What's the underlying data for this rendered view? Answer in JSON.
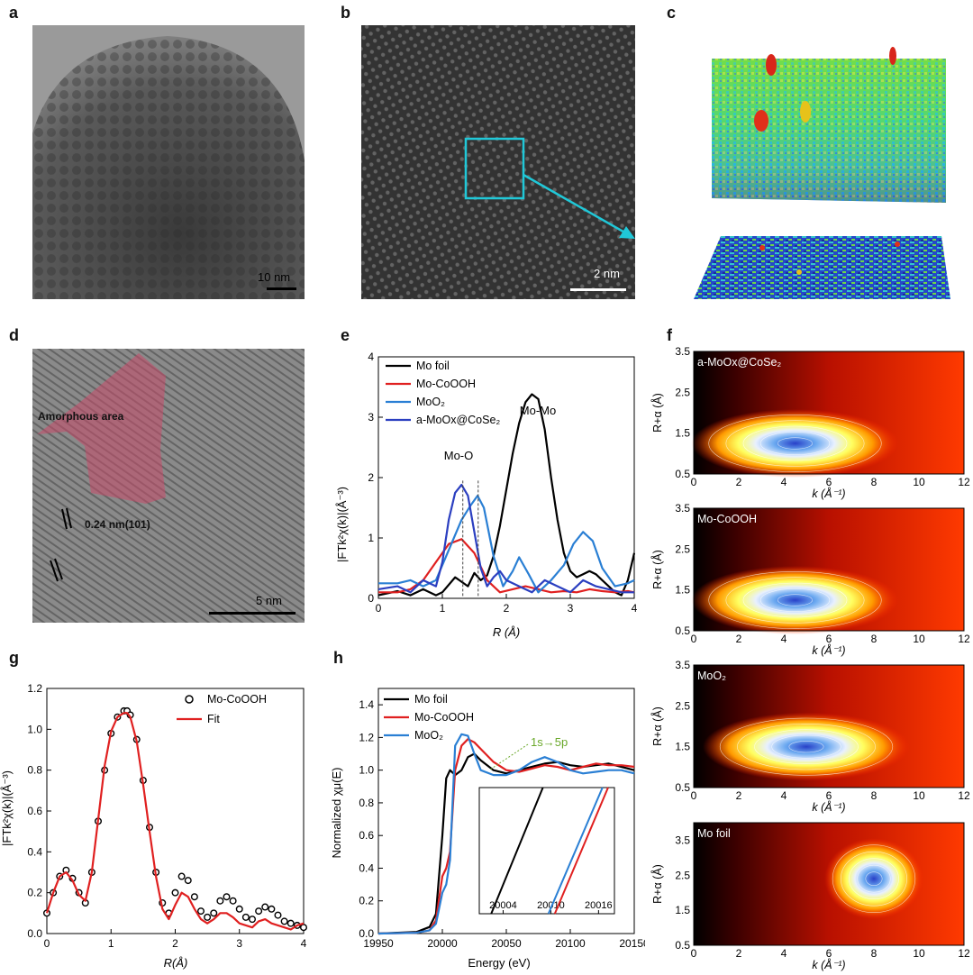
{
  "panel_labels": [
    "a",
    "b",
    "c",
    "d",
    "e",
    "f",
    "g",
    "h"
  ],
  "micrographs": {
    "a": {
      "scale": "10 nm"
    },
    "b": {
      "scale": "2 nm"
    },
    "d": {
      "scale": "5 nm",
      "amorphous": "Amorphous area",
      "lattice": "0.24 nm(101)"
    }
  },
  "chart_data": [
    {
      "id": "e",
      "type": "line",
      "xlabel": "R (Å)",
      "ylabel": "|FTk²χ(k)|(Å⁻³)",
      "xlim": [
        0,
        4
      ],
      "ylim": [
        0,
        4
      ],
      "xticks": [
        "0",
        "1",
        "2",
        "3",
        "4"
      ],
      "yticks": [
        "0",
        "1",
        "2",
        "3",
        "4"
      ],
      "legend": "top-left",
      "annotations": [
        "Mo-Mo",
        "Mo-O"
      ],
      "series": [
        {
          "name": "Mo foil",
          "color": "#000000",
          "x": [
            0,
            0.3,
            0.5,
            0.7,
            0.9,
            1.0,
            1.2,
            1.4,
            1.5,
            1.6,
            1.7,
            1.8,
            1.9,
            2.0,
            2.1,
            2.2,
            2.3,
            2.4,
            2.5,
            2.6,
            2.7,
            2.8,
            2.9,
            3.0,
            3.1,
            3.2,
            3.3,
            3.4,
            3.5,
            3.6,
            3.7,
            3.8,
            3.9,
            4.0
          ],
          "y": [
            0.05,
            0.12,
            0.05,
            0.15,
            0.05,
            0.1,
            0.35,
            0.2,
            0.42,
            0.3,
            0.38,
            0.7,
            1.2,
            1.8,
            2.4,
            2.9,
            3.25,
            3.38,
            3.3,
            2.8,
            2.0,
            1.3,
            0.75,
            0.45,
            0.35,
            0.4,
            0.45,
            0.4,
            0.3,
            0.2,
            0.1,
            0.05,
            0.3,
            0.75
          ]
        },
        {
          "name": "Mo-CoOOH",
          "color": "#e02020",
          "x": [
            0,
            0.3,
            0.5,
            0.7,
            0.9,
            1.1,
            1.3,
            1.5,
            1.7,
            1.9,
            2.1,
            2.3,
            2.5,
            2.7,
            2.9,
            3.1,
            3.3,
            3.5,
            3.7,
            3.9,
            4.0
          ],
          "y": [
            0.1,
            0.1,
            0.15,
            0.3,
            0.6,
            0.9,
            0.98,
            0.75,
            0.3,
            0.1,
            0.15,
            0.2,
            0.15,
            0.1,
            0.12,
            0.1,
            0.15,
            0.12,
            0.1,
            0.12,
            0.1
          ]
        },
        {
          "name": "MoO₂",
          "color": "#2a7fd4",
          "x": [
            0,
            0.3,
            0.5,
            0.7,
            0.9,
            1.1,
            1.3,
            1.45,
            1.55,
            1.65,
            1.8,
            1.95,
            2.1,
            2.2,
            2.35,
            2.5,
            2.7,
            2.9,
            3.05,
            3.2,
            3.35,
            3.5,
            3.7,
            3.9,
            4.0
          ],
          "y": [
            0.25,
            0.25,
            0.3,
            0.2,
            0.3,
            0.8,
            1.3,
            1.55,
            1.7,
            1.5,
            0.7,
            0.2,
            0.45,
            0.68,
            0.4,
            0.1,
            0.3,
            0.55,
            0.9,
            1.1,
            0.95,
            0.5,
            0.2,
            0.25,
            0.3
          ]
        },
        {
          "name": "a-MoOx@CoSe₂",
          "color": "#2b3fc0",
          "x": [
            0,
            0.3,
            0.5,
            0.7,
            0.9,
            1.0,
            1.1,
            1.2,
            1.3,
            1.4,
            1.5,
            1.6,
            1.7,
            1.8,
            1.9,
            2.0,
            2.2,
            2.4,
            2.6,
            2.8,
            3.0,
            3.2,
            3.4,
            3.6,
            3.8,
            4.0
          ],
          "y": [
            0.15,
            0.2,
            0.1,
            0.3,
            0.2,
            0.6,
            1.3,
            1.75,
            1.88,
            1.7,
            1.1,
            0.5,
            0.2,
            0.35,
            0.45,
            0.3,
            0.2,
            0.1,
            0.3,
            0.2,
            0.1,
            0.3,
            0.2,
            0.15,
            0.1,
            0.1
          ]
        }
      ]
    },
    {
      "id": "g",
      "type": "line",
      "xlabel": "R(Å)",
      "ylabel": "|FTk²χ(k)|(Å⁻³)",
      "xlim": [
        0,
        4
      ],
      "ylim": [
        0,
        1.2
      ],
      "xticks": [
        "0",
        "1",
        "2",
        "3",
        "4"
      ],
      "yticks": [
        "0.0",
        "0.2",
        "0.4",
        "0.6",
        "0.8",
        "1.0",
        "1.2"
      ],
      "legend": "top-right",
      "series": [
        {
          "name": "Mo-CoOOH",
          "color": "#000000",
          "style": "markers",
          "x": [
            0,
            0.1,
            0.2,
            0.3,
            0.4,
            0.5,
            0.6,
            0.7,
            0.8,
            0.9,
            1.0,
            1.1,
            1.2,
            1.25,
            1.3,
            1.4,
            1.5,
            1.6,
            1.7,
            1.8,
            1.9,
            2.0,
            2.1,
            2.2,
            2.3,
            2.4,
            2.5,
            2.6,
            2.7,
            2.8,
            2.9,
            3.0,
            3.1,
            3.2,
            3.3,
            3.4,
            3.5,
            3.6,
            3.7,
            3.8,
            3.9,
            4.0
          ],
          "y": [
            0.1,
            0.2,
            0.28,
            0.31,
            0.27,
            0.2,
            0.15,
            0.3,
            0.55,
            0.8,
            0.98,
            1.06,
            1.09,
            1.09,
            1.07,
            0.95,
            0.75,
            0.52,
            0.3,
            0.15,
            0.1,
            0.2,
            0.28,
            0.26,
            0.18,
            0.11,
            0.08,
            0.1,
            0.16,
            0.18,
            0.16,
            0.12,
            0.08,
            0.07,
            0.11,
            0.13,
            0.12,
            0.09,
            0.06,
            0.05,
            0.04,
            0.03
          ]
        },
        {
          "name": "Fit",
          "color": "#e02020",
          "style": "line",
          "x": [
            0,
            0.1,
            0.2,
            0.3,
            0.4,
            0.5,
            0.6,
            0.7,
            0.8,
            0.9,
            1.0,
            1.1,
            1.2,
            1.25,
            1.3,
            1.4,
            1.5,
            1.6,
            1.7,
            1.8,
            1.9,
            2.0,
            2.1,
            2.2,
            2.3,
            2.4,
            2.5,
            2.6,
            2.7,
            2.8,
            2.9,
            3.0,
            3.1,
            3.2,
            3.3,
            3.4,
            3.5,
            3.6,
            3.7,
            3.8,
            3.9,
            4.0
          ],
          "y": [
            0.1,
            0.2,
            0.28,
            0.3,
            0.26,
            0.19,
            0.16,
            0.3,
            0.56,
            0.82,
            0.99,
            1.06,
            1.08,
            1.08,
            1.06,
            0.94,
            0.73,
            0.5,
            0.28,
            0.12,
            0.07,
            0.14,
            0.2,
            0.18,
            0.12,
            0.07,
            0.05,
            0.07,
            0.1,
            0.1,
            0.08,
            0.05,
            0.04,
            0.03,
            0.06,
            0.07,
            0.05,
            0.04,
            0.03,
            0.02,
            0.04,
            0.05
          ]
        }
      ]
    },
    {
      "id": "h",
      "type": "line",
      "xlabel": "Energy (eV)",
      "ylabel": "Normalized χμ(E)",
      "xlim": [
        19950,
        20150
      ],
      "ylim": [
        0,
        1.5
      ],
      "xticks": [
        "19950",
        "20000",
        "20050",
        "20100",
        "20150"
      ],
      "yticks": [
        "0.0",
        "0.2",
        "0.4",
        "0.6",
        "0.8",
        "1.0",
        "1.2",
        "1.4"
      ],
      "legend": "top-left",
      "annotations": [
        "1s→5p"
      ],
      "inset": {
        "xticks": [
          "20004",
          "20010",
          "20016"
        ]
      },
      "series": [
        {
          "name": "Mo foil",
          "color": "#000000",
          "x": [
            19950,
            19980,
            19990,
            19995,
            20000,
            20003,
            20006,
            20010,
            20015,
            20020,
            20025,
            20030,
            20040,
            20050,
            20060,
            20070,
            20080,
            20090,
            20100,
            20110,
            20120,
            20130,
            20140,
            20150
          ],
          "y": [
            0,
            0.01,
            0.04,
            0.12,
            0.6,
            0.95,
            1.0,
            0.97,
            1.0,
            1.08,
            1.1,
            1.06,
            1.0,
            0.98,
            1.0,
            1.02,
            1.04,
            1.05,
            1.03,
            1.02,
            1.03,
            1.04,
            1.02,
            1.0
          ]
        },
        {
          "name": "Mo-CoOOH",
          "color": "#e02020",
          "x": [
            19950,
            19980,
            19990,
            19995,
            20000,
            20003,
            20006,
            20010,
            20015,
            20020,
            20025,
            20030,
            20040,
            20050,
            20060,
            20070,
            20080,
            20090,
            20100,
            20110,
            20120,
            20130,
            20140,
            20150
          ],
          "y": [
            0,
            0.005,
            0.02,
            0.08,
            0.35,
            0.4,
            0.5,
            1.0,
            1.15,
            1.19,
            1.17,
            1.13,
            1.05,
            1.0,
            0.99,
            1.01,
            1.03,
            1.02,
            1.0,
            1.02,
            1.04,
            1.03,
            1.03,
            1.02
          ]
        },
        {
          "name": "MoO₂",
          "color": "#2a7fd4",
          "x": [
            19950,
            19980,
            19990,
            19995,
            20000,
            20003,
            20006,
            20010,
            20015,
            20020,
            20025,
            20030,
            20040,
            20050,
            20060,
            20070,
            20080,
            20090,
            20100,
            20110,
            20120,
            20130,
            20140,
            20150
          ],
          "y": [
            0,
            0.005,
            0.02,
            0.06,
            0.25,
            0.3,
            0.45,
            1.15,
            1.22,
            1.21,
            1.1,
            1.0,
            0.97,
            0.97,
            1.0,
            1.05,
            1.08,
            1.05,
            1.0,
            0.98,
            0.99,
            1.0,
            1.0,
            0.98
          ]
        }
      ]
    },
    {
      "id": "f",
      "type": "heatmap",
      "xlabel": "k (Å⁻¹)",
      "ylabel": "R+α (Å)",
      "subplots": [
        {
          "label": "a-MoOx@CoSe₂",
          "xlim": [
            0,
            12
          ],
          "ylim": [
            0.5,
            3.5
          ],
          "xticks": [
            "0",
            "2",
            "4",
            "6",
            "8",
            "10",
            "12"
          ],
          "yticks": [
            "0.5",
            "1.5",
            "2.5",
            "3.5"
          ],
          "peak": [
            4.5,
            1.25
          ]
        },
        {
          "label": "Mo-CoOOH",
          "xlim": [
            0,
            12
          ],
          "ylim": [
            0.5,
            3.5
          ],
          "xticks": [
            "0",
            "2",
            "4",
            "6",
            "8",
            "10",
            "12"
          ],
          "yticks": [
            "0.5",
            "1.5",
            "2.5",
            "3.5"
          ],
          "peak": [
            4.5,
            1.25
          ]
        },
        {
          "label": "MoO₂",
          "xlim": [
            0,
            12
          ],
          "ylim": [
            0.5,
            3.5
          ],
          "xticks": [
            "0",
            "2",
            "4",
            "6",
            "8",
            "10",
            "12"
          ],
          "yticks": [
            "0.5",
            "1.5",
            "2.5",
            "3.5"
          ],
          "peak": [
            5.0,
            1.5
          ]
        },
        {
          "label": "Mo foil",
          "xlim": [
            0,
            12
          ],
          "ylim": [
            0.5,
            4.0
          ],
          "xticks": [
            "0",
            "2",
            "4",
            "6",
            "8",
            "10",
            "12"
          ],
          "yticks": [
            "0.5",
            "1.5",
            "2.5",
            "3.5"
          ],
          "peak": [
            8.0,
            2.4
          ]
        }
      ]
    }
  ]
}
